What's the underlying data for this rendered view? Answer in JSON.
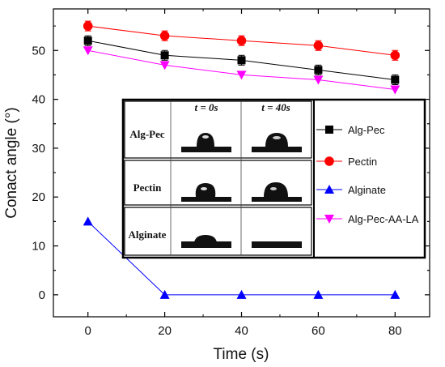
{
  "chart_data": {
    "type": "line",
    "xlabel": "Time (s)",
    "ylabel": "Conact angle (°)",
    "x": [
      0,
      20,
      40,
      60,
      80
    ],
    "xticks": [
      0,
      20,
      40,
      60,
      80
    ],
    "yticks": [
      0,
      10,
      20,
      30,
      40,
      50
    ],
    "xlim": [
      -9,
      89
    ],
    "ylim": [
      -4.5,
      58.5
    ],
    "grid": false,
    "legend_position": "right, inside the inset panel",
    "series": [
      {
        "name": "Alg-Pec",
        "color": "#000000",
        "marker": "square",
        "values": [
          52,
          49,
          48,
          46,
          44
        ],
        "error": [
          1,
          1,
          1,
          1,
          1
        ]
      },
      {
        "name": "Pectin",
        "color": "#ff0000",
        "marker": "circle",
        "values": [
          55,
          53,
          52,
          51,
          49
        ],
        "error": [
          1,
          1,
          1,
          1,
          1
        ]
      },
      {
        "name": "Alginate",
        "color": "#0000ff",
        "marker": "triangle-up",
        "values": [
          15,
          0,
          0,
          0,
          0
        ],
        "error": null
      },
      {
        "name": "Alg-Pec-AA-LA",
        "color": "#ff00ff",
        "marker": "triangle-down",
        "values": [
          50,
          47,
          45,
          44,
          42
        ],
        "error": null
      }
    ],
    "inset": {
      "columns": [
        "t = 0s",
        "t = 40s"
      ],
      "rows": [
        "Alg-Pec",
        "Pectin",
        "Alginate"
      ]
    }
  }
}
